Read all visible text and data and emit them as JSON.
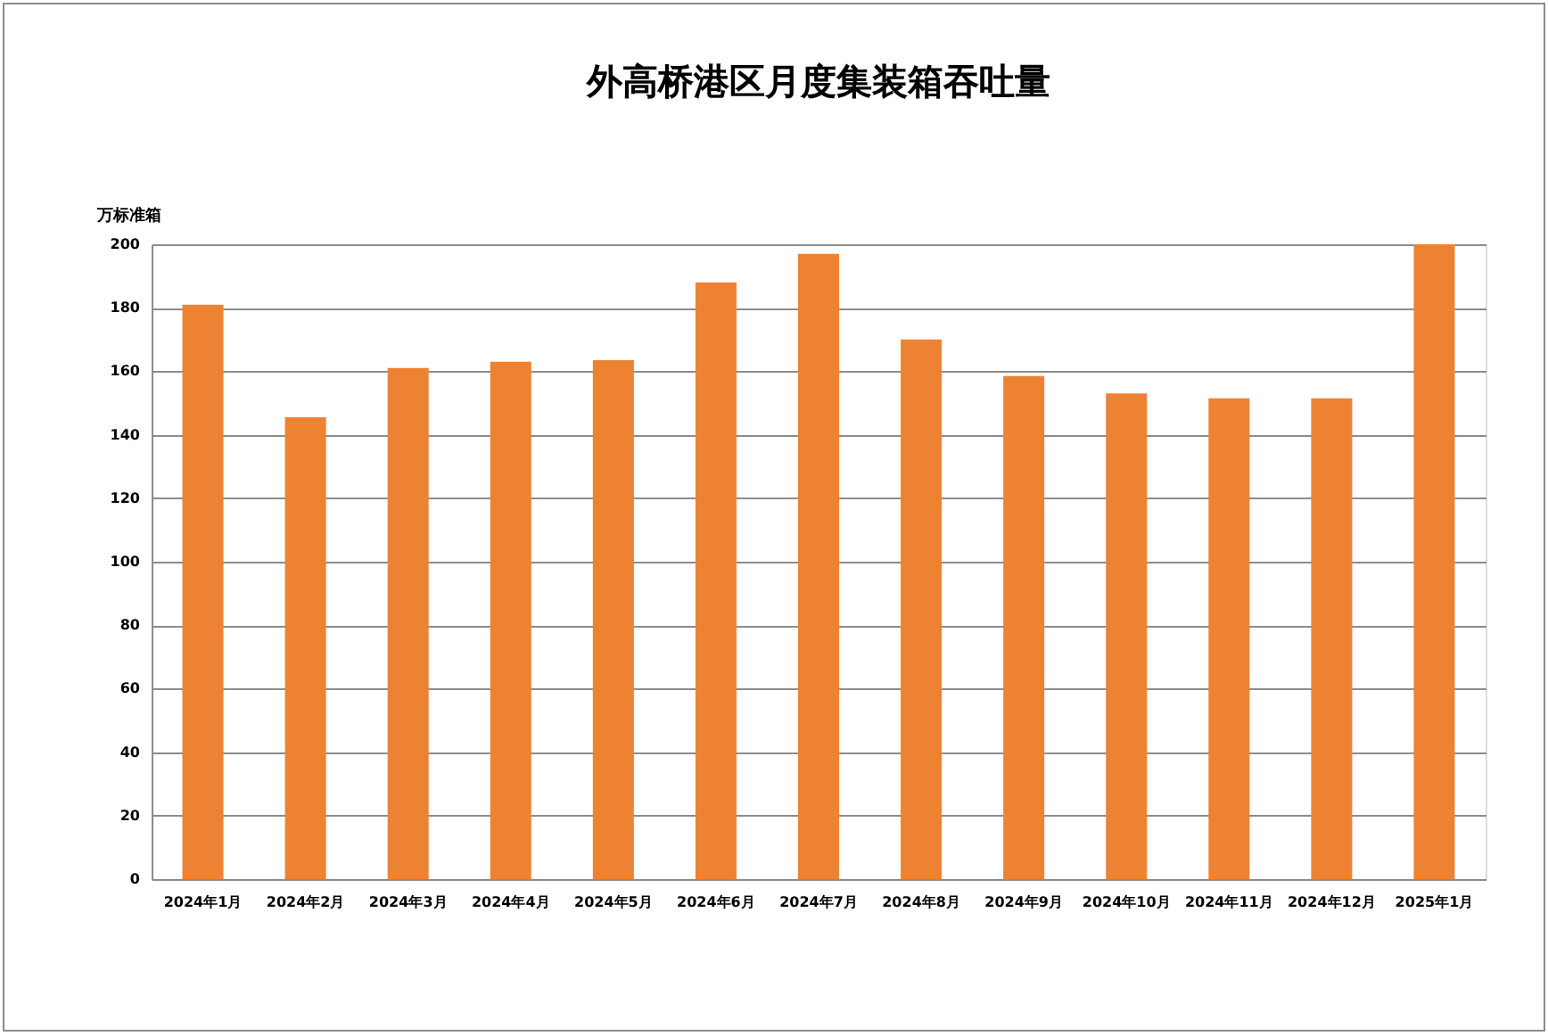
{
  "chart_data": {
    "type": "bar",
    "title": "外高桥港区月度集装箱吞吐量",
    "ylabel": "万标准箱",
    "categories": [
      "2024年1月",
      "2024年2月",
      "2024年3月",
      "2024年4月",
      "2024年5月",
      "2024年6月",
      "2024年7月",
      "2024年8月",
      "2024年9月",
      "2024年10月",
      "2024年11月",
      "2024年12月",
      "2025年1月"
    ],
    "values": [
      181,
      145.5,
      161,
      163,
      163.5,
      188,
      197,
      170,
      158.5,
      153,
      151.5,
      151.5,
      200
    ],
    "color": "#ed8232",
    "ylim": [
      0,
      200
    ],
    "yticks": [
      0,
      20,
      40,
      60,
      80,
      100,
      120,
      140,
      160,
      180,
      200
    ],
    "grid": "y"
  }
}
